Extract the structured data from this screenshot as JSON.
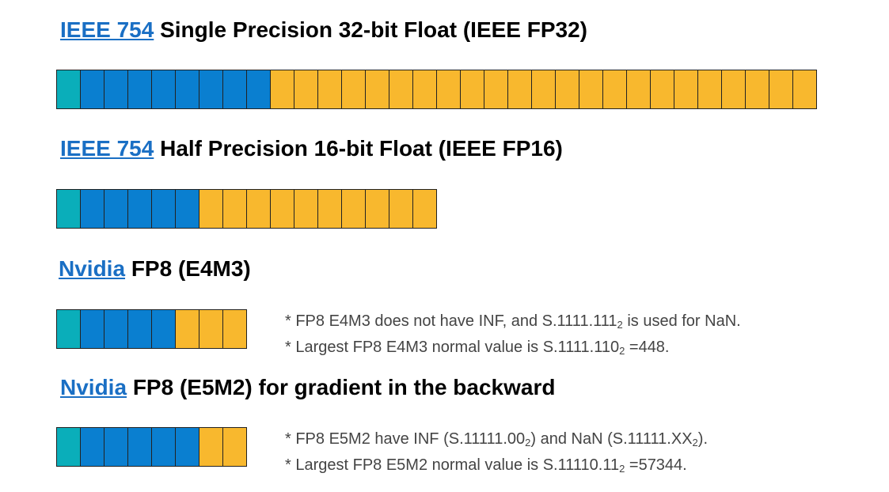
{
  "formats": [
    {
      "link": "IEEE 754",
      "title": "Single Precision 32-bit Float (IEEE FP32)",
      "sign_bits": 1,
      "exponent_bits": 8,
      "mantissa_bits": 23,
      "notes": []
    },
    {
      "link": "IEEE 754",
      "title": "Half Precision 16-bit Float (IEEE FP16)",
      "sign_bits": 1,
      "exponent_bits": 5,
      "mantissa_bits": 10,
      "notes": []
    },
    {
      "link": "Nvidia",
      "title": "FP8 (E4M3)",
      "sign_bits": 1,
      "exponent_bits": 4,
      "mantissa_bits": 3,
      "notes": [
        {
          "pre": "* FP8 E4M3 does not have INF, and S.1111.111",
          "sub": "2",
          "post": " is used for NaN."
        },
        {
          "pre": "* Largest FP8 E4M3 normal value is S.1111.110",
          "sub": "2",
          "post": " =448."
        }
      ]
    },
    {
      "link": "Nvidia",
      "title": "FP8 (E5M2) for gradient in the backward",
      "sign_bits": 1,
      "exponent_bits": 5,
      "mantissa_bits": 2,
      "notes": [
        {
          "pre": "* FP8 E5M2 have INF (S.11111.00",
          "sub": "2",
          "post": ") and NaN (S.11111.XX",
          "sub2": "2",
          "post2": ")."
        },
        {
          "pre": "* Largest FP8 E5M2 normal value is S.11110.11",
          "sub": "2",
          "post": " =57344."
        }
      ]
    }
  ],
  "colors": {
    "sign": "#0aaeba",
    "exponent": "#0a7fd0",
    "mantissa": "#f8b82e",
    "link": "#1a6fc4"
  }
}
